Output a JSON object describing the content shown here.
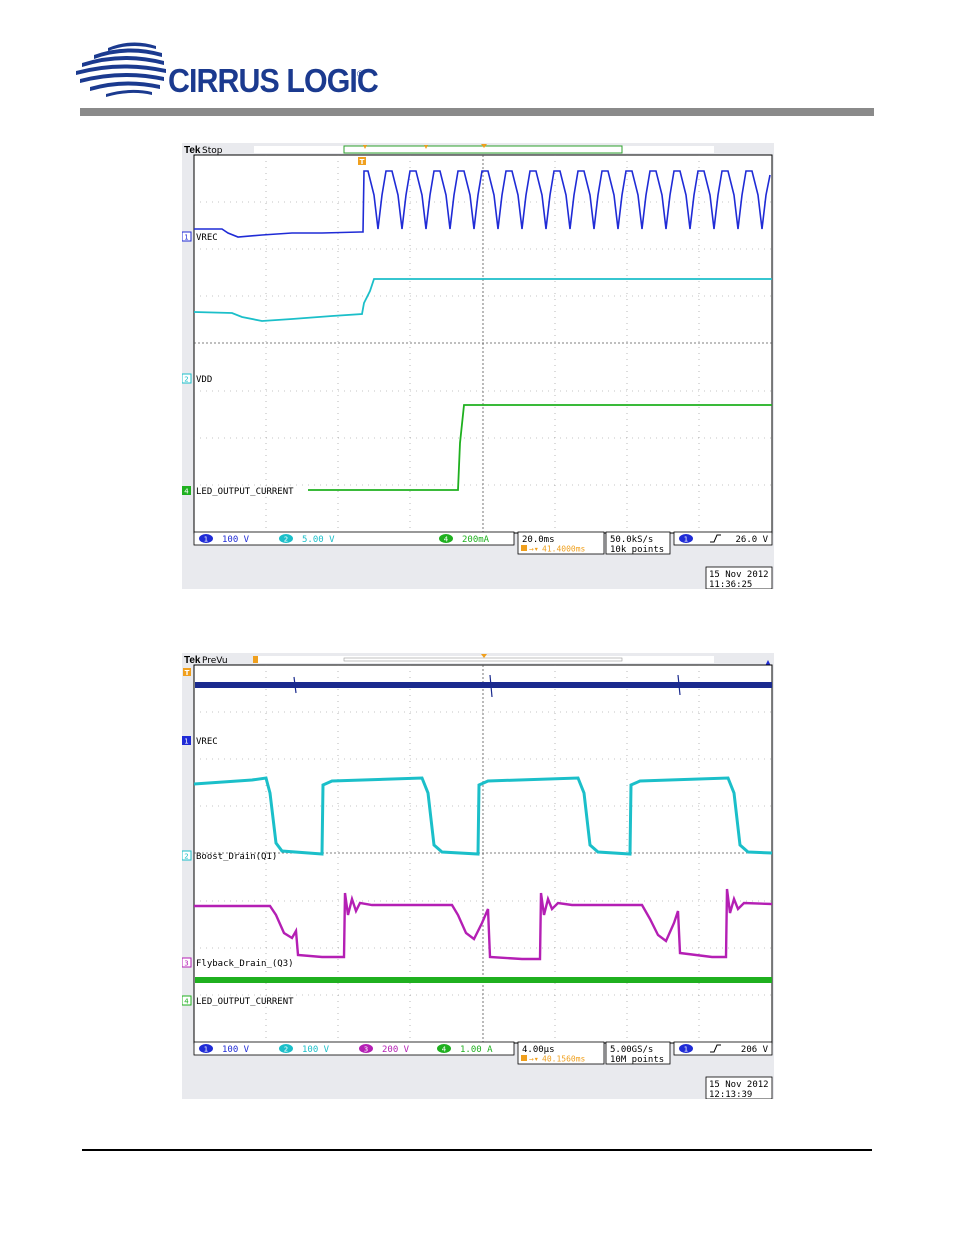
{
  "brand": {
    "name": "CIRRUS LOGIC",
    "registered_mark": "®",
    "colors": {
      "primary": "#1b3a8f",
      "rule": "#8a8a8a"
    }
  },
  "scopes": [
    {
      "brand": "Tek",
      "status": "Stop",
      "channel_labels": {
        "ch1": {
          "num": "1",
          "name": "VREC"
        },
        "ch2": {
          "num": "2",
          "name": "VDD"
        },
        "ch4": {
          "num": "4",
          "name": "LED_OUTPUT_CURRENT"
        }
      },
      "scale": {
        "ch1": "100 V",
        "ch2": "5.00 V",
        "ch4": "200mA",
        "timebase": "20.0ms",
        "trigger_delay": "41.4000ms",
        "sample_rate": "50.0kS/s",
        "record_length": "10k points",
        "trigger_level": "26.0 V"
      },
      "date": "15 Nov 2012",
      "time": "11:36:25"
    },
    {
      "brand": "Tek",
      "status": "PreVu",
      "channel_labels": {
        "ch1": {
          "num": "1",
          "name": "VREC"
        },
        "ch2": {
          "num": "2",
          "name": "Boost_Drain(Q1)"
        },
        "ch3": {
          "num": "3",
          "name": "Flyback_Drain_(Q3)"
        },
        "ch4": {
          "num": "4",
          "name": "LED_OUTPUT_CURRENT"
        }
      },
      "scale": {
        "ch1": "100 V",
        "ch2": "100 V",
        "ch3": "200 V",
        "ch4": "1.00 A",
        "timebase": "4.00µs",
        "trigger_delay": "40.1560ms",
        "sample_rate": "5.00GS/s",
        "record_length": "10M points",
        "trigger_level": "206 V"
      },
      "date": "15 Nov 2012",
      "time": "12:13:39"
    }
  ],
  "trace_colors": {
    "ch1": "#1f2bd6",
    "ch1b": "#1a2a8e",
    "ch2": "#1bbfc9",
    "ch3": "#b41fb4",
    "ch4": "#1fb01f",
    "trigger": "#f0a01e"
  }
}
